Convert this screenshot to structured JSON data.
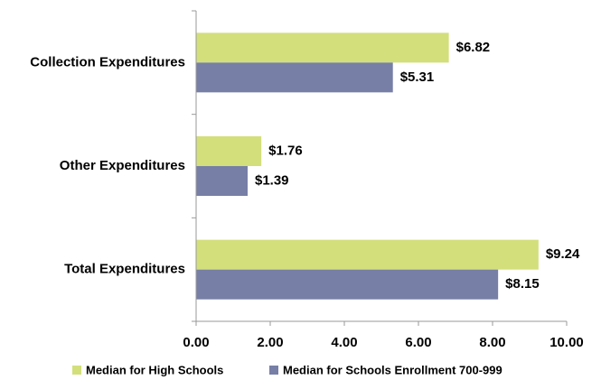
{
  "chart_data": {
    "type": "bar",
    "orientation": "horizontal",
    "categories": [
      "Collection Expenditures",
      "Other Expenditures",
      "Total Expenditures"
    ],
    "series": [
      {
        "name": "Median for High Schools",
        "color": "#d3df7b",
        "values": [
          6.82,
          1.76,
          9.24
        ],
        "value_labels": [
          "$6.82",
          "$1.76",
          "$9.24"
        ]
      },
      {
        "name": "Median for Schools Enrollment 700-999",
        "color": "#777fa6",
        "values": [
          5.31,
          1.39,
          8.15
        ],
        "value_labels": [
          "$5.31",
          "$1.39",
          "$8.15"
        ]
      }
    ],
    "xlim": [
      0,
      10
    ],
    "xticks": [
      {
        "value": 0,
        "label": "0.00"
      },
      {
        "value": 2,
        "label": "2.00"
      },
      {
        "value": 4,
        "label": "4.00"
      },
      {
        "value": 6,
        "label": "6.00"
      },
      {
        "value": 8,
        "label": "8.00"
      },
      {
        "value": 10,
        "label": "10.00"
      }
    ],
    "legend": "bottom"
  }
}
